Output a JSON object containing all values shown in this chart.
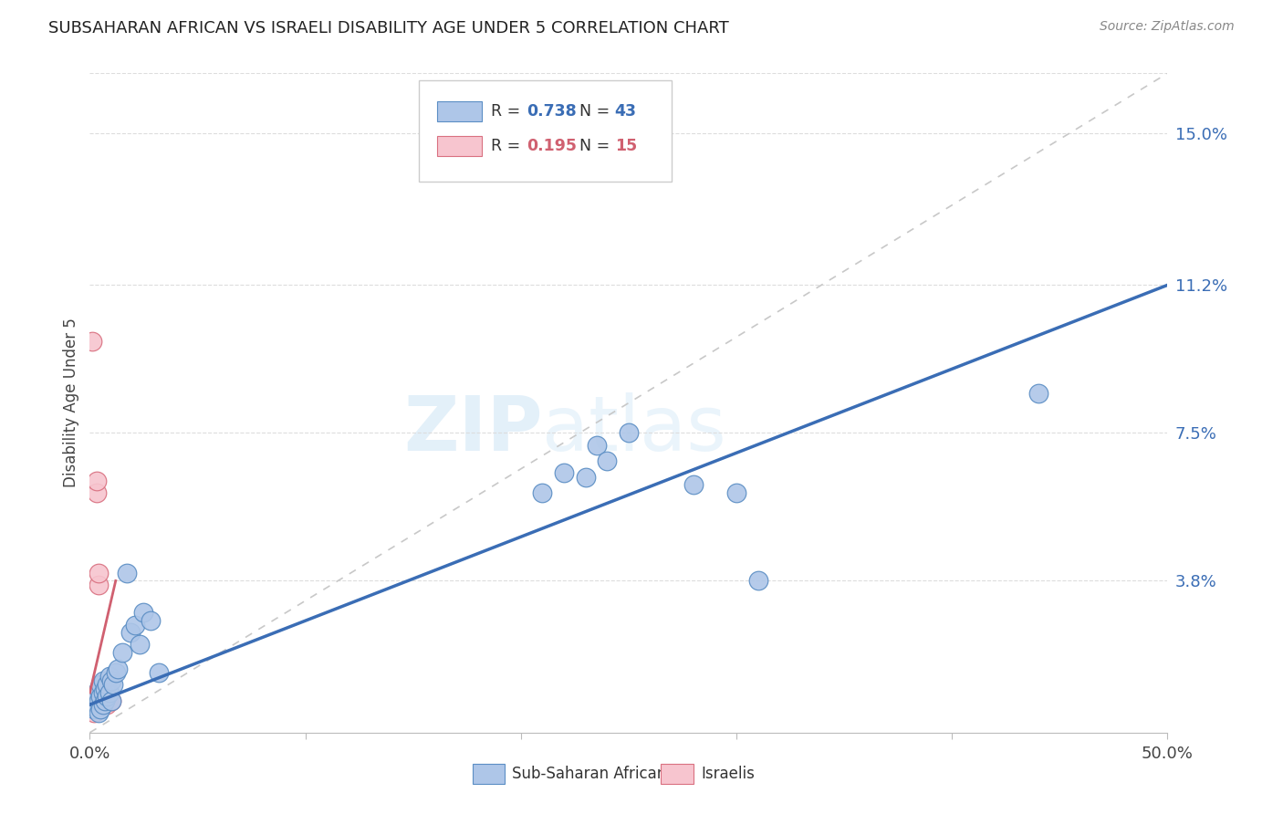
{
  "title": "SUBSAHARAN AFRICAN VS ISRAELI DISABILITY AGE UNDER 5 CORRELATION CHART",
  "source": "Source: ZipAtlas.com",
  "ylabel": "Disability Age Under 5",
  "xlim": [
    0.0,
    0.5
  ],
  "ylim": [
    0.0,
    0.165
  ],
  "ytick_right_vals": [
    0.038,
    0.075,
    0.112,
    0.15
  ],
  "ytick_right_labels": [
    "3.8%",
    "7.5%",
    "11.2%",
    "15.0%"
  ],
  "blue_R": 0.738,
  "blue_N": 43,
  "pink_R": 0.195,
  "pink_N": 15,
  "blue_color": "#aec6e8",
  "blue_edge_color": "#5b8ec4",
  "blue_line_color": "#3a6db5",
  "pink_color": "#f7c5cf",
  "pink_edge_color": "#d97080",
  "pink_line_color": "#d06070",
  "ref_line_color": "#c8c8c8",
  "watermark": "ZIPatlas",
  "blue_scatter_x": [
    0.001,
    0.002,
    0.002,
    0.003,
    0.003,
    0.004,
    0.004,
    0.004,
    0.005,
    0.005,
    0.005,
    0.006,
    0.006,
    0.006,
    0.007,
    0.007,
    0.008,
    0.008,
    0.009,
    0.009,
    0.01,
    0.01,
    0.011,
    0.012,
    0.013,
    0.015,
    0.017,
    0.019,
    0.021,
    0.023,
    0.025,
    0.028,
    0.032,
    0.21,
    0.22,
    0.23,
    0.235,
    0.24,
    0.25,
    0.28,
    0.3,
    0.31,
    0.44
  ],
  "blue_scatter_y": [
    0.008,
    0.006,
    0.009,
    0.007,
    0.01,
    0.005,
    0.008,
    0.011,
    0.006,
    0.009,
    0.012,
    0.007,
    0.01,
    0.013,
    0.008,
    0.011,
    0.009,
    0.012,
    0.01,
    0.014,
    0.008,
    0.013,
    0.012,
    0.015,
    0.016,
    0.02,
    0.04,
    0.025,
    0.027,
    0.022,
    0.03,
    0.028,
    0.015,
    0.06,
    0.065,
    0.064,
    0.072,
    0.068,
    0.075,
    0.062,
    0.06,
    0.038,
    0.085
  ],
  "pink_scatter_x": [
    0.001,
    0.001,
    0.002,
    0.002,
    0.003,
    0.003,
    0.004,
    0.004,
    0.005,
    0.005,
    0.006,
    0.007,
    0.008,
    0.009,
    0.01
  ],
  "pink_scatter_y": [
    0.098,
    0.008,
    0.005,
    0.008,
    0.06,
    0.063,
    0.037,
    0.04,
    0.008,
    0.01,
    0.009,
    0.008,
    0.007,
    0.008,
    0.008
  ],
  "blue_line_x0": 0.0,
  "blue_line_y0": 0.007,
  "blue_line_x1": 0.5,
  "blue_line_y1": 0.112,
  "pink_line_x0": 0.0,
  "pink_line_y0": 0.01,
  "pink_line_x1": 0.012,
  "pink_line_y1": 0.038,
  "ref_line_x0": 0.0,
  "ref_line_y0": 0.0,
  "ref_line_x1": 0.5,
  "ref_line_y1": 0.165
}
